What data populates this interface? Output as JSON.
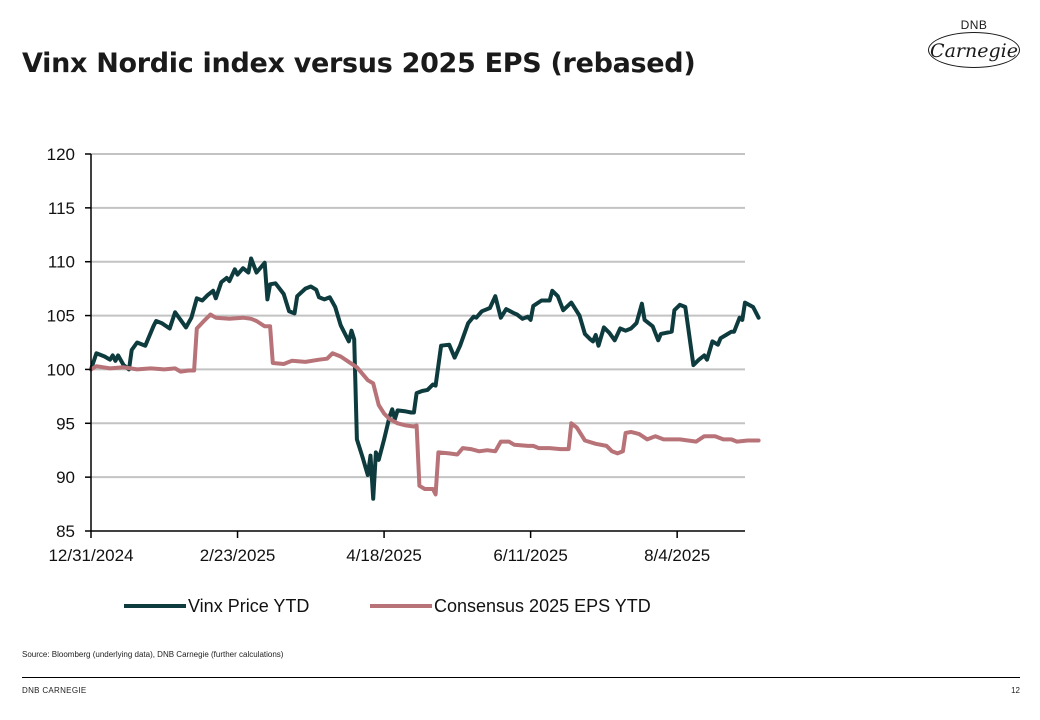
{
  "title": "Vinx Nordic index versus 2025 EPS (rebased)",
  "logo": {
    "top_text": "DNB",
    "script_text": "Carnegie"
  },
  "source": "Source: Bloomberg (underlying data), DNB Carnegie (further calculations)",
  "footer": {
    "left": "DNB CARNEGIE",
    "page": "12"
  },
  "chart_data": {
    "type": "line",
    "title": "Vinx Nordic index versus 2025 EPS (rebased)",
    "xlabel": "",
    "ylabel": "",
    "x_range": [
      "2024-12-31",
      "2025-08-29"
    ],
    "ylim": [
      85,
      120
    ],
    "yticks": [
      85,
      90,
      95,
      100,
      105,
      110,
      115,
      120
    ],
    "xticks": [
      {
        "date": "2024-12-31",
        "label": "12/31/2024"
      },
      {
        "date": "2025-02-23",
        "label": "2/23/2025"
      },
      {
        "date": "2025-04-18",
        "label": "4/18/2025"
      },
      {
        "date": "2025-06-11",
        "label": "6/11/2025"
      },
      {
        "date": "2025-08-04",
        "label": "8/4/2025"
      }
    ],
    "grid": "horizontal",
    "legend_position": "bottom",
    "series": [
      {
        "name": "Vinx Price YTD",
        "color": "#0d3b3e",
        "points": [
          [
            "2024-12-31",
            100.0
          ],
          [
            "2025-01-02",
            101.5
          ],
          [
            "2025-01-05",
            101.2
          ],
          [
            "2025-01-07",
            100.9
          ],
          [
            "2025-01-08",
            101.3
          ],
          [
            "2025-01-09",
            100.8
          ],
          [
            "2025-01-10",
            101.3
          ],
          [
            "2025-01-12",
            100.4
          ],
          [
            "2025-01-14",
            100.0
          ],
          [
            "2025-01-15",
            101.8
          ],
          [
            "2025-01-17",
            102.5
          ],
          [
            "2025-01-20",
            102.2
          ],
          [
            "2025-01-23",
            104.0
          ],
          [
            "2025-01-24",
            104.5
          ],
          [
            "2025-01-26",
            104.3
          ],
          [
            "2025-01-29",
            103.8
          ],
          [
            "2025-01-31",
            105.3
          ],
          [
            "2025-02-02",
            104.6
          ],
          [
            "2025-02-04",
            103.9
          ],
          [
            "2025-02-06",
            104.8
          ],
          [
            "2025-02-08",
            106.6
          ],
          [
            "2025-02-10",
            106.4
          ],
          [
            "2025-02-12",
            106.9
          ],
          [
            "2025-02-14",
            107.3
          ],
          [
            "2025-02-15",
            106.6
          ],
          [
            "2025-02-17",
            108.1
          ],
          [
            "2025-02-19",
            108.5
          ],
          [
            "2025-02-20",
            108.2
          ],
          [
            "2025-02-22",
            109.3
          ],
          [
            "2025-02-23",
            108.8
          ],
          [
            "2025-02-25",
            109.4
          ],
          [
            "2025-02-27",
            109.0
          ],
          [
            "2025-02-28",
            110.3
          ],
          [
            "2025-03-02",
            109.0
          ],
          [
            "2025-03-05",
            109.9
          ],
          [
            "2025-03-06",
            106.5
          ],
          [
            "2025-03-07",
            107.9
          ],
          [
            "2025-03-09",
            108.0
          ],
          [
            "2025-03-12",
            107.0
          ],
          [
            "2025-03-14",
            105.4
          ],
          [
            "2025-03-16",
            105.2
          ],
          [
            "2025-03-17",
            106.8
          ],
          [
            "2025-03-20",
            107.5
          ],
          [
            "2025-03-22",
            107.7
          ],
          [
            "2025-03-24",
            107.4
          ],
          [
            "2025-03-25",
            106.7
          ],
          [
            "2025-03-27",
            106.5
          ],
          [
            "2025-03-29",
            106.7
          ],
          [
            "2025-03-31",
            105.8
          ],
          [
            "2025-04-02",
            104.1
          ],
          [
            "2025-04-05",
            102.6
          ],
          [
            "2025-04-06",
            103.6
          ],
          [
            "2025-04-07",
            102.8
          ],
          [
            "2025-04-08",
            93.5
          ],
          [
            "2025-04-10",
            91.9
          ],
          [
            "2025-04-12",
            90.2
          ],
          [
            "2025-04-13",
            92.0
          ],
          [
            "2025-04-14",
            88.0
          ],
          [
            "2025-04-15",
            92.3
          ],
          [
            "2025-04-16",
            91.6
          ],
          [
            "2025-04-18",
            93.5
          ],
          [
            "2025-04-20",
            95.6
          ],
          [
            "2025-04-21",
            96.3
          ],
          [
            "2025-04-22",
            95.4
          ],
          [
            "2025-04-23",
            96.2
          ],
          [
            "2025-04-26",
            96.1
          ],
          [
            "2025-04-28",
            96.0
          ],
          [
            "2025-04-29",
            96.0
          ],
          [
            "2025-04-30",
            97.8
          ],
          [
            "2025-05-02",
            98.0
          ],
          [
            "2025-05-04",
            98.1
          ],
          [
            "2025-05-06",
            98.6
          ],
          [
            "2025-05-07",
            98.5
          ],
          [
            "2025-05-09",
            102.2
          ],
          [
            "2025-05-12",
            102.3
          ],
          [
            "2025-05-14",
            101.1
          ],
          [
            "2025-05-16",
            102.2
          ],
          [
            "2025-05-19",
            104.3
          ],
          [
            "2025-05-21",
            104.9
          ],
          [
            "2025-05-22",
            104.8
          ],
          [
            "2025-05-24",
            105.4
          ],
          [
            "2025-05-27",
            105.7
          ],
          [
            "2025-05-29",
            106.8
          ],
          [
            "2025-05-31",
            104.8
          ],
          [
            "2025-06-02",
            105.6
          ],
          [
            "2025-06-05",
            105.2
          ],
          [
            "2025-06-06",
            105.1
          ],
          [
            "2025-06-08",
            104.7
          ],
          [
            "2025-06-10",
            104.9
          ],
          [
            "2025-06-11",
            104.6
          ],
          [
            "2025-06-12",
            105.9
          ],
          [
            "2025-06-15",
            106.4
          ],
          [
            "2025-06-18",
            106.4
          ],
          [
            "2025-06-19",
            107.3
          ],
          [
            "2025-06-21",
            106.8
          ],
          [
            "2025-06-23",
            105.5
          ],
          [
            "2025-06-26",
            106.2
          ],
          [
            "2025-06-29",
            105.0
          ],
          [
            "2025-07-01",
            103.3
          ],
          [
            "2025-07-03",
            102.8
          ],
          [
            "2025-07-04",
            102.6
          ],
          [
            "2025-07-05",
            103.2
          ],
          [
            "2025-07-06",
            102.2
          ],
          [
            "2025-07-08",
            103.9
          ],
          [
            "2025-07-10",
            103.4
          ],
          [
            "2025-07-12",
            102.7
          ],
          [
            "2025-07-14",
            103.8
          ],
          [
            "2025-07-16",
            103.6
          ],
          [
            "2025-07-18",
            103.8
          ],
          [
            "2025-07-20",
            104.3
          ],
          [
            "2025-07-22",
            106.1
          ],
          [
            "2025-07-23",
            104.6
          ],
          [
            "2025-07-26",
            104.0
          ],
          [
            "2025-07-28",
            102.7
          ],
          [
            "2025-07-29",
            103.3
          ],
          [
            "2025-07-31",
            103.4
          ],
          [
            "2025-08-02",
            103.5
          ],
          [
            "2025-08-03",
            105.5
          ],
          [
            "2025-08-05",
            106.0
          ],
          [
            "2025-08-07",
            105.8
          ],
          [
            "2025-08-08",
            104.0
          ],
          [
            "2025-08-10",
            100.4
          ],
          [
            "2025-08-12",
            100.9
          ],
          [
            "2025-08-14",
            101.3
          ],
          [
            "2025-08-15",
            100.9
          ],
          [
            "2025-08-17",
            102.6
          ],
          [
            "2025-08-19",
            102.3
          ],
          [
            "2025-08-20",
            102.9
          ],
          [
            "2025-08-22",
            103.2
          ],
          [
            "2025-08-24",
            103.5
          ],
          [
            "2025-08-25",
            103.5
          ],
          [
            "2025-08-27",
            104.8
          ],
          [
            "2025-08-28",
            104.6
          ],
          [
            "2025-08-29",
            106.2
          ],
          [
            "2025-09-01",
            105.8
          ],
          [
            "2025-09-03",
            104.8
          ]
        ]
      },
      {
        "name": "Consensus 2025 EPS YTD",
        "color": "#b87378",
        "points": [
          [
            "2024-12-31",
            100.0
          ],
          [
            "2025-01-02",
            100.3
          ],
          [
            "2025-01-07",
            100.1
          ],
          [
            "2025-01-12",
            100.2
          ],
          [
            "2025-01-17",
            100.0
          ],
          [
            "2025-01-22",
            100.1
          ],
          [
            "2025-01-27",
            100.0
          ],
          [
            "2025-01-31",
            100.1
          ],
          [
            "2025-02-02",
            99.8
          ],
          [
            "2025-02-05",
            99.9
          ],
          [
            "2025-02-07",
            99.9
          ],
          [
            "2025-02-08",
            103.8
          ],
          [
            "2025-02-11",
            104.6
          ],
          [
            "2025-02-13",
            105.1
          ],
          [
            "2025-02-15",
            104.8
          ],
          [
            "2025-02-20",
            104.7
          ],
          [
            "2025-02-25",
            104.8
          ],
          [
            "2025-02-28",
            104.7
          ],
          [
            "2025-03-02",
            104.5
          ],
          [
            "2025-03-05",
            104.0
          ],
          [
            "2025-03-07",
            104.0
          ],
          [
            "2025-03-08",
            100.6
          ],
          [
            "2025-03-12",
            100.5
          ],
          [
            "2025-03-15",
            100.8
          ],
          [
            "2025-03-20",
            100.7
          ],
          [
            "2025-03-25",
            100.9
          ],
          [
            "2025-03-28",
            101.0
          ],
          [
            "2025-03-30",
            101.5
          ],
          [
            "2025-04-02",
            101.2
          ],
          [
            "2025-04-05",
            100.7
          ],
          [
            "2025-04-08",
            100.2
          ],
          [
            "2025-04-12",
            99.0
          ],
          [
            "2025-04-14",
            98.7
          ],
          [
            "2025-04-16",
            96.7
          ],
          [
            "2025-04-18",
            95.9
          ],
          [
            "2025-04-20",
            95.4
          ],
          [
            "2025-04-23",
            95.0
          ],
          [
            "2025-04-26",
            94.8
          ],
          [
            "2025-04-29",
            94.7
          ],
          [
            "2025-04-30",
            94.8
          ],
          [
            "2025-05-01",
            89.2
          ],
          [
            "2025-05-03",
            88.9
          ],
          [
            "2025-05-06",
            88.9
          ],
          [
            "2025-05-07",
            88.4
          ],
          [
            "2025-05-08",
            92.3
          ],
          [
            "2025-05-12",
            92.2
          ],
          [
            "2025-05-15",
            92.1
          ],
          [
            "2025-05-17",
            92.7
          ],
          [
            "2025-05-20",
            92.6
          ],
          [
            "2025-05-23",
            92.4
          ],
          [
            "2025-05-26",
            92.5
          ],
          [
            "2025-05-29",
            92.4
          ],
          [
            "2025-05-31",
            93.3
          ],
          [
            "2025-06-03",
            93.3
          ],
          [
            "2025-06-05",
            93.0
          ],
          [
            "2025-06-10",
            92.9
          ],
          [
            "2025-06-12",
            92.9
          ],
          [
            "2025-06-14",
            92.7
          ],
          [
            "2025-06-18",
            92.7
          ],
          [
            "2025-06-22",
            92.6
          ],
          [
            "2025-06-25",
            92.6
          ],
          [
            "2025-06-26",
            95.0
          ],
          [
            "2025-06-28",
            94.6
          ],
          [
            "2025-07-01",
            93.4
          ],
          [
            "2025-07-05",
            93.1
          ],
          [
            "2025-07-09",
            92.9
          ],
          [
            "2025-07-11",
            92.4
          ],
          [
            "2025-07-13",
            92.2
          ],
          [
            "2025-07-15",
            92.4
          ],
          [
            "2025-07-16",
            94.1
          ],
          [
            "2025-07-18",
            94.2
          ],
          [
            "2025-07-21",
            94.0
          ],
          [
            "2025-07-24",
            93.5
          ],
          [
            "2025-07-27",
            93.8
          ],
          [
            "2025-07-30",
            93.5
          ],
          [
            "2025-08-02",
            93.5
          ],
          [
            "2025-08-05",
            93.5
          ],
          [
            "2025-08-08",
            93.4
          ],
          [
            "2025-08-11",
            93.3
          ],
          [
            "2025-08-14",
            93.8
          ],
          [
            "2025-08-18",
            93.8
          ],
          [
            "2025-08-21",
            93.5
          ],
          [
            "2025-08-24",
            93.5
          ],
          [
            "2025-08-26",
            93.3
          ],
          [
            "2025-08-30",
            93.4
          ],
          [
            "2025-09-03",
            93.4
          ]
        ]
      }
    ]
  }
}
